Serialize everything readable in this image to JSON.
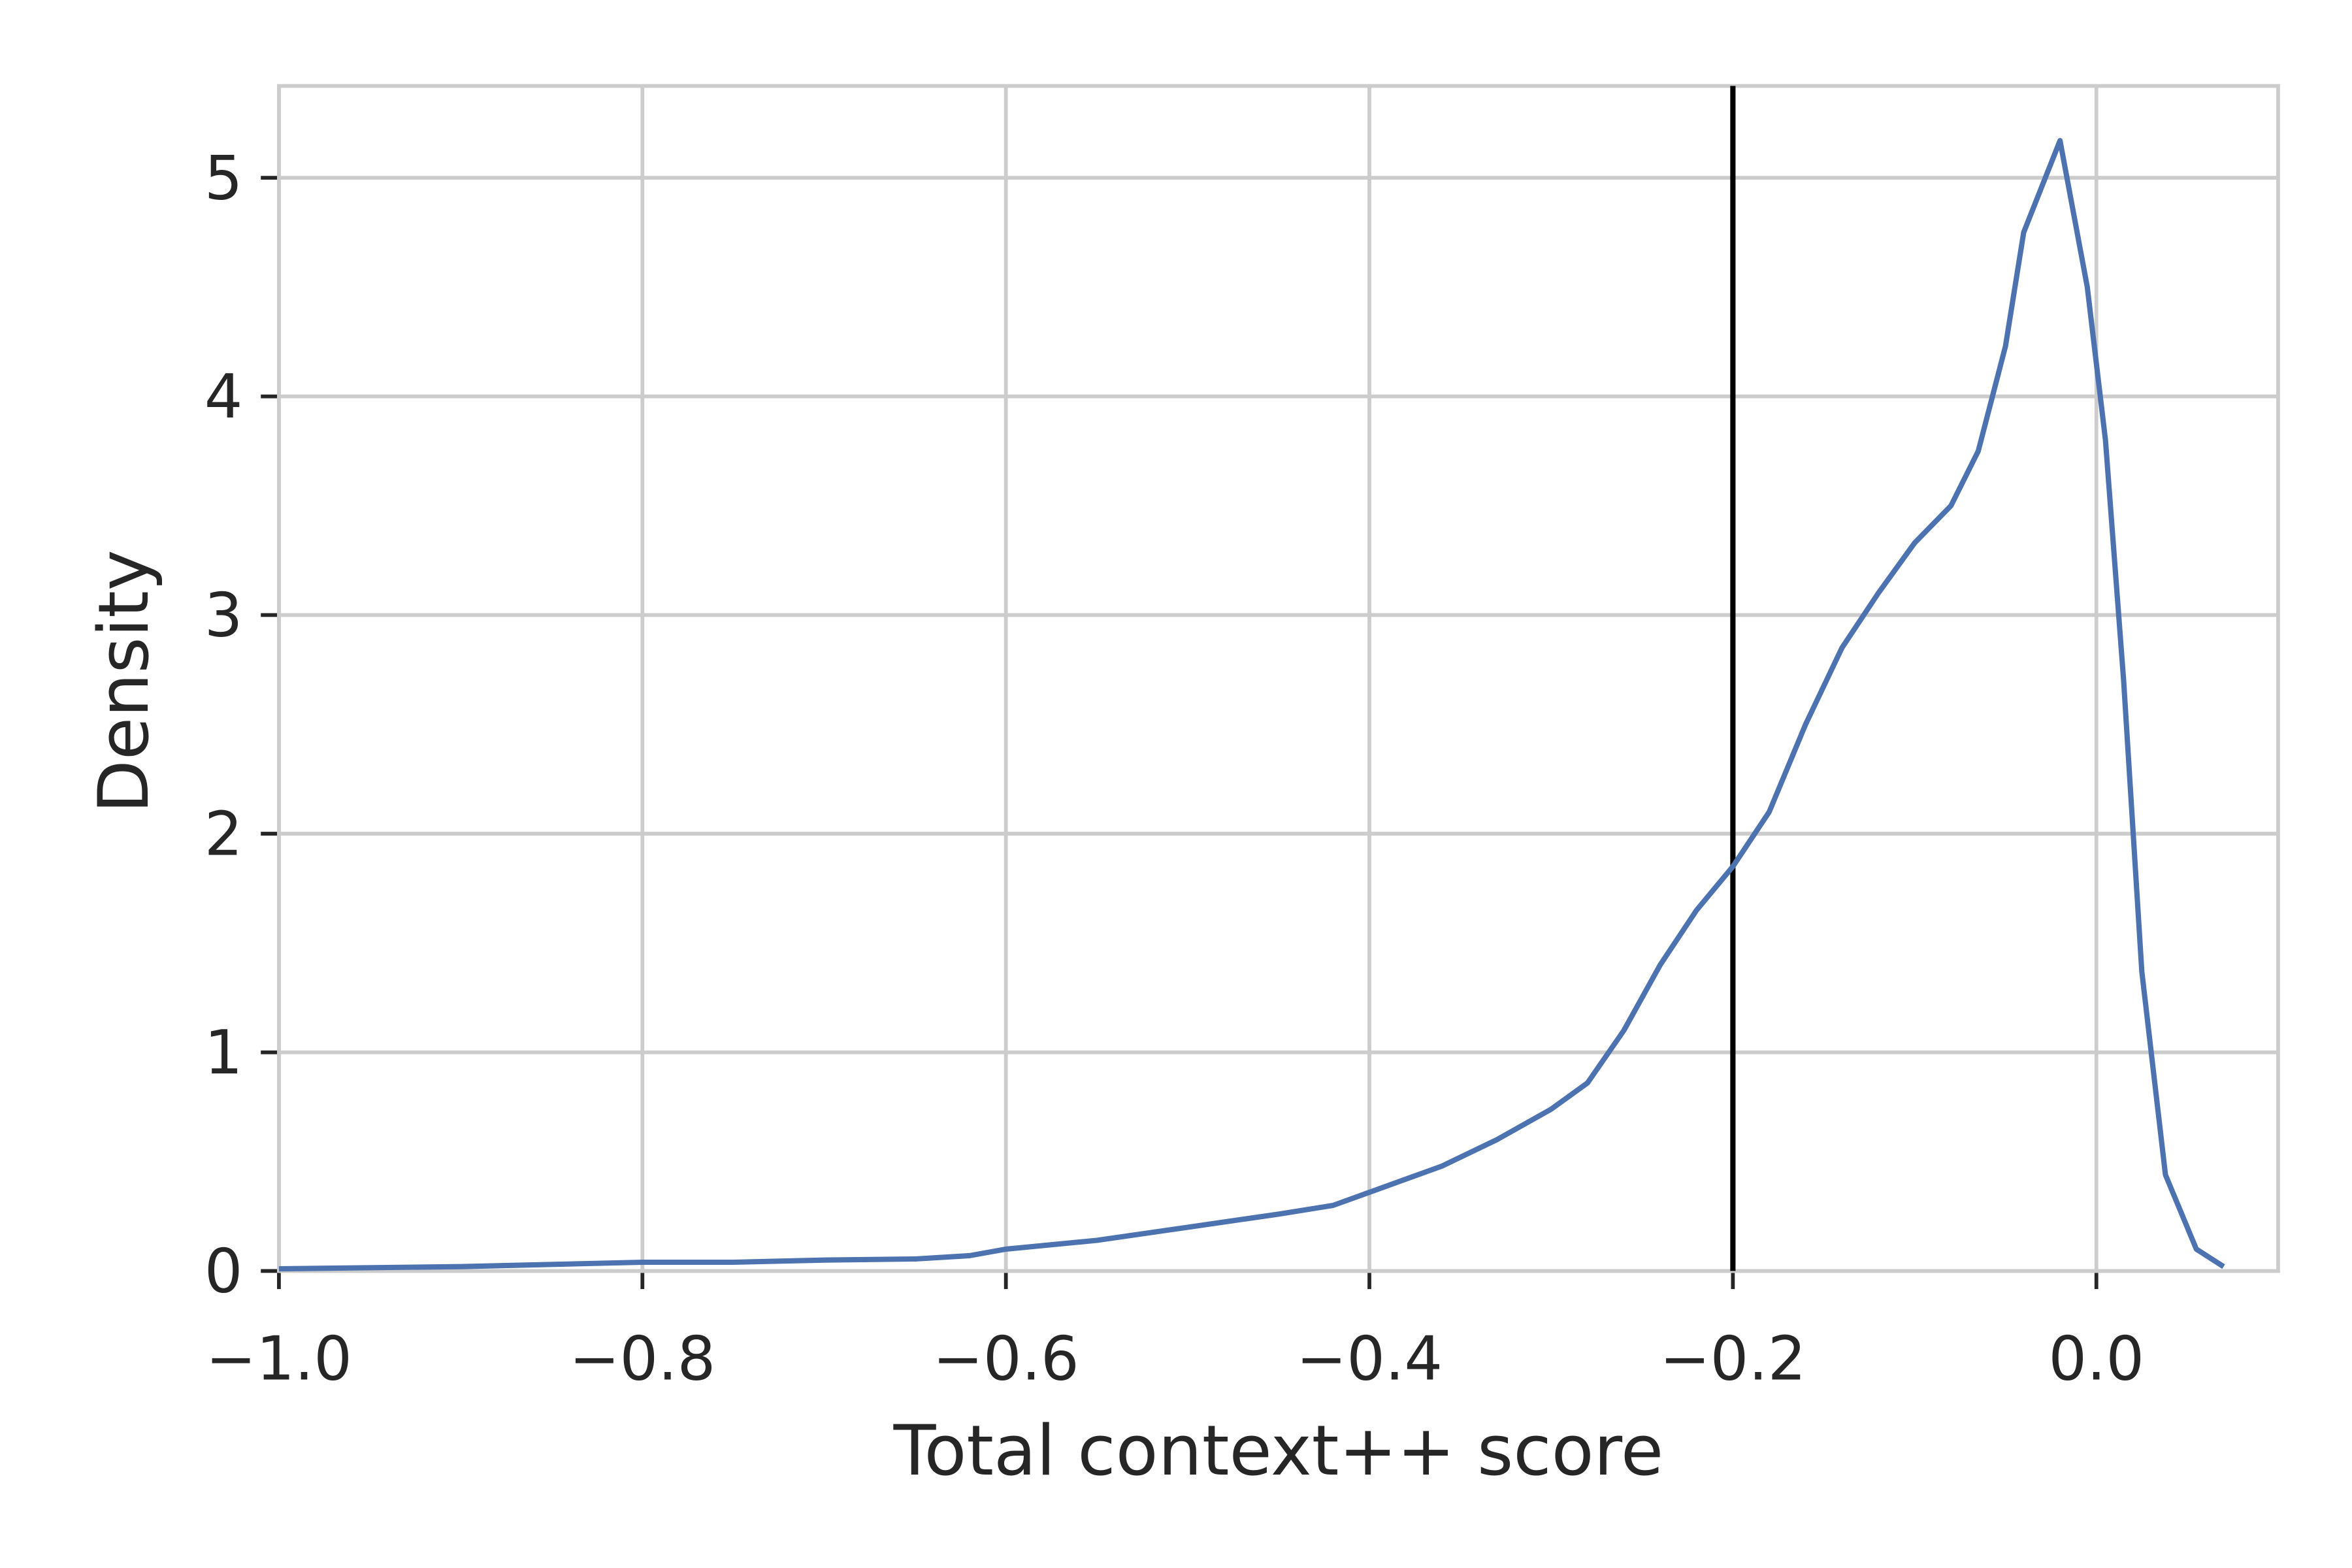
{
  "chart_data": {
    "type": "line",
    "xlabel": "Total context++ score",
    "ylabel": "Density",
    "xlim": [
      -1.0,
      0.1
    ],
    "ylim": [
      0,
      5.42
    ],
    "xticks": [
      {
        "value": -1.0,
        "label": "−1.0"
      },
      {
        "value": -0.8,
        "label": "−0.8"
      },
      {
        "value": -0.6,
        "label": "−0.6"
      },
      {
        "value": -0.4,
        "label": "−0.4"
      },
      {
        "value": -0.2,
        "label": "−0.2"
      },
      {
        "value": 0,
        "label": "0.0"
      }
    ],
    "yticks": [
      0,
      1,
      2,
      3,
      4,
      5
    ],
    "grid": true,
    "x": [
      -1.0,
      -0.9,
      -0.8,
      -0.75,
      -0.7,
      -0.65,
      -0.62,
      -0.6,
      -0.55,
      -0.5,
      -0.45,
      -0.42,
      -0.4,
      -0.36,
      -0.33,
      -0.3,
      -0.28,
      -0.26,
      -0.24,
      -0.22,
      -0.2,
      -0.18,
      -0.16,
      -0.14,
      -0.12,
      -0.1,
      -0.08,
      -0.065,
      -0.05,
      -0.04,
      -0.02,
      -0.005,
      0.005,
      0.015,
      0.025,
      0.038,
      0.055,
      0.07
    ],
    "series": [
      {
        "color": "#4c72b0",
        "values": [
          0.01,
          0.02,
          0.04,
          0.04,
          0.05,
          0.055,
          0.07,
          0.1,
          0.14,
          0.2,
          0.26,
          0.3,
          0.36,
          0.48,
          0.6,
          0.74,
          0.86,
          1.1,
          1.4,
          1.65,
          1.85,
          2.1,
          2.5,
          2.85,
          3.1,
          3.33,
          3.5,
          3.75,
          4.23,
          4.75,
          5.17,
          4.5,
          3.8,
          2.7,
          1.37,
          0.44,
          0.1,
          0.02
        ]
      }
    ],
    "vlines": [
      {
        "x": -0.2,
        "color": "#000000"
      }
    ]
  }
}
